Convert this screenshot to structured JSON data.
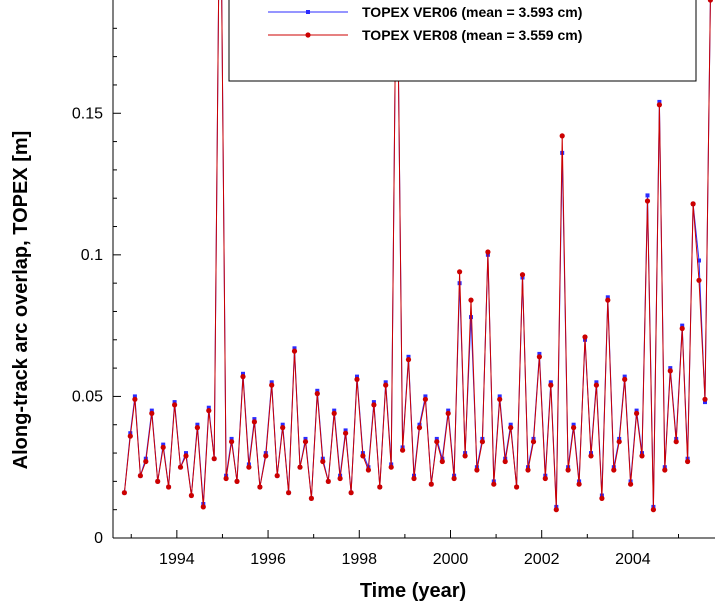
{
  "chart_data": {
    "type": "line",
    "xlabel": "Time (year)",
    "ylabel": "Along-track arc overlap, TOPEX [m]",
    "xlim": [
      1992.6,
      2005.8
    ],
    "ylim": [
      0,
      0.19
    ],
    "x_ticks": [
      1994,
      1996,
      1998,
      2000,
      2002,
      2004
    ],
    "x_tick_labels": [
      "1994",
      "1996",
      "1998",
      "2000",
      "2002",
      "2004"
    ],
    "y_ticks": [
      0,
      0.05,
      0.1,
      0.15
    ],
    "y_tick_labels": [
      "0",
      "0.05",
      "0.1",
      "0.15"
    ],
    "legend_position": "top-right",
    "colors": {
      "VER06": "#2b2bff",
      "VER08": "#cc0000"
    },
    "series": [
      {
        "name": "TOPEX VER06 (mean = 3.593 cm)",
        "x": [
          1992.85,
          1992.98,
          1993.08,
          1993.2,
          1993.32,
          1993.45,
          1993.58,
          1993.7,
          1993.82,
          1993.95,
          1994.08,
          1994.2,
          1994.32,
          1994.45,
          1994.58,
          1994.7,
          1994.82,
          1994.95,
          1995.08,
          1995.2,
          1995.32,
          1995.45,
          1995.58,
          1995.7,
          1995.82,
          1995.95,
          1996.08,
          1996.2,
          1996.32,
          1996.45,
          1996.58,
          1996.7,
          1996.82,
          1996.95,
          1997.08,
          1997.2,
          1997.32,
          1997.45,
          1997.58,
          1997.7,
          1997.82,
          1997.95,
          1998.08,
          1998.2,
          1998.32,
          1998.45,
          1998.58,
          1998.7,
          1998.82,
          1998.95,
          1999.08,
          1999.2,
          1999.32,
          1999.45,
          1999.58,
          1999.7,
          1999.82,
          1999.95,
          2000.08,
          2000.2,
          2000.32,
          2000.45,
          2000.58,
          2000.7,
          2000.82,
          2000.95,
          2001.08,
          2001.2,
          2001.32,
          2001.45,
          2001.58,
          2001.7,
          2001.82,
          2001.95,
          2002.08,
          2002.2,
          2002.32,
          2002.45,
          2002.58,
          2002.7,
          2002.82,
          2002.95,
          2003.08,
          2003.2,
          2003.32,
          2003.45,
          2003.58,
          2003.7,
          2003.82,
          2003.95,
          2004.08,
          2004.2,
          2004.32,
          2004.45,
          2004.58,
          2004.7,
          2004.82,
          2004.95,
          2005.08,
          2005.2,
          2005.32,
          2005.45,
          2005.58,
          2005.7
        ],
        "y": [
          0.016,
          0.037,
          0.05,
          0.022,
          0.028,
          0.045,
          0.02,
          0.033,
          0.018,
          0.048,
          0.025,
          0.03,
          0.015,
          0.04,
          0.012,
          0.046,
          0.028,
          0.25,
          0.022,
          0.035,
          0.02,
          0.058,
          0.026,
          0.042,
          0.018,
          0.03,
          0.055,
          0.022,
          0.04,
          0.016,
          0.067,
          0.025,
          0.035,
          0.014,
          0.052,
          0.028,
          0.02,
          0.045,
          0.022,
          0.038,
          0.016,
          0.057,
          0.03,
          0.025,
          0.048,
          0.018,
          0.055,
          0.026,
          0.22,
          0.032,
          0.064,
          0.022,
          0.04,
          0.05,
          0.019,
          0.035,
          0.028,
          0.045,
          0.022,
          0.09,
          0.03,
          0.078,
          0.025,
          0.035,
          0.1,
          0.02,
          0.05,
          0.028,
          0.04,
          0.018,
          0.092,
          0.025,
          0.035,
          0.065,
          0.022,
          0.055,
          0.011,
          0.136,
          0.025,
          0.04,
          0.02,
          0.07,
          0.03,
          0.055,
          0.015,
          0.085,
          0.025,
          0.035,
          0.057,
          0.02,
          0.045,
          0.03,
          0.121,
          0.011,
          0.154,
          0.025,
          0.06,
          0.035,
          0.075,
          0.028,
          0.118,
          0.098,
          0.048,
          0.19
        ],
        "mean_cm": 3.593
      },
      {
        "name": "TOPEX VER08 (mean = 3.559 cm)",
        "x": [
          1992.85,
          1992.98,
          1993.08,
          1993.2,
          1993.32,
          1993.45,
          1993.58,
          1993.7,
          1993.82,
          1993.95,
          1994.08,
          1994.2,
          1994.32,
          1994.45,
          1994.58,
          1994.7,
          1994.82,
          1994.95,
          1995.08,
          1995.2,
          1995.32,
          1995.45,
          1995.58,
          1995.7,
          1995.82,
          1995.95,
          1996.08,
          1996.2,
          1996.32,
          1996.45,
          1996.58,
          1996.7,
          1996.82,
          1996.95,
          1997.08,
          1997.2,
          1997.32,
          1997.45,
          1997.58,
          1997.7,
          1997.82,
          1997.95,
          1998.08,
          1998.2,
          1998.32,
          1998.45,
          1998.58,
          1998.7,
          1998.82,
          1998.95,
          1999.08,
          1999.2,
          1999.32,
          1999.45,
          1999.58,
          1999.7,
          1999.82,
          1999.95,
          2000.08,
          2000.2,
          2000.32,
          2000.45,
          2000.58,
          2000.7,
          2000.82,
          2000.95,
          2001.08,
          2001.2,
          2001.32,
          2001.45,
          2001.58,
          2001.7,
          2001.82,
          2001.95,
          2002.08,
          2002.2,
          2002.32,
          2002.45,
          2002.58,
          2002.7,
          2002.82,
          2002.95,
          2003.08,
          2003.2,
          2003.32,
          2003.45,
          2003.58,
          2003.7,
          2003.82,
          2003.95,
          2004.08,
          2004.2,
          2004.32,
          2004.45,
          2004.58,
          2004.7,
          2004.82,
          2004.95,
          2005.08,
          2005.2,
          2005.32,
          2005.45,
          2005.58,
          2005.7
        ],
        "y": [
          0.016,
          0.036,
          0.049,
          0.022,
          0.027,
          0.044,
          0.02,
          0.032,
          0.018,
          0.047,
          0.025,
          0.029,
          0.015,
          0.039,
          0.011,
          0.045,
          0.028,
          0.25,
          0.021,
          0.034,
          0.02,
          0.057,
          0.025,
          0.041,
          0.018,
          0.029,
          0.054,
          0.022,
          0.039,
          0.016,
          0.066,
          0.025,
          0.034,
          0.014,
          0.051,
          0.027,
          0.02,
          0.044,
          0.021,
          0.037,
          0.016,
          0.056,
          0.029,
          0.024,
          0.047,
          0.018,
          0.054,
          0.025,
          0.22,
          0.031,
          0.063,
          0.021,
          0.039,
          0.049,
          0.019,
          0.034,
          0.027,
          0.044,
          0.021,
          0.094,
          0.029,
          0.084,
          0.024,
          0.034,
          0.101,
          0.019,
          0.049,
          0.027,
          0.039,
          0.018,
          0.093,
          0.024,
          0.034,
          0.064,
          0.021,
          0.054,
          0.01,
          0.142,
          0.024,
          0.039,
          0.019,
          0.071,
          0.029,
          0.054,
          0.014,
          0.084,
          0.024,
          0.034,
          0.056,
          0.019,
          0.044,
          0.029,
          0.119,
          0.01,
          0.153,
          0.024,
          0.059,
          0.034,
          0.074,
          0.027,
          0.118,
          0.091,
          0.049,
          0.19
        ],
        "mean_cm": 3.559
      }
    ]
  }
}
